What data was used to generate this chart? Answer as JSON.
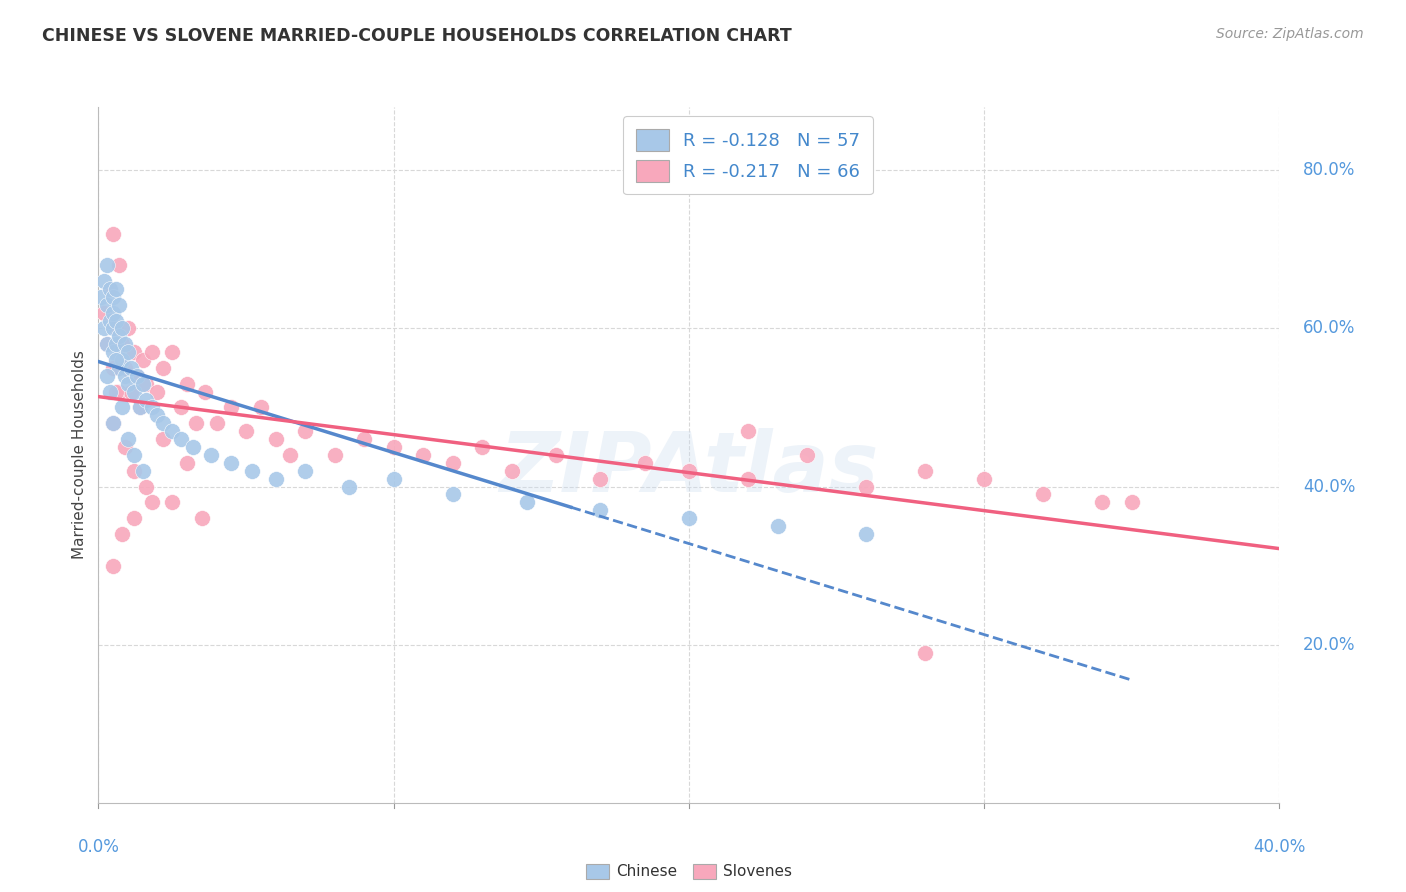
{
  "title": "CHINESE VS SLOVENE MARRIED-COUPLE HOUSEHOLDS CORRELATION CHART",
  "source": "Source: ZipAtlas.com",
  "ylabel": "Married-couple Households",
  "xlim": [
    0.0,
    0.4
  ],
  "ylim": [
    0.0,
    0.88
  ],
  "ytick_labels": [
    "20.0%",
    "40.0%",
    "60.0%",
    "80.0%"
  ],
  "ytick_values": [
    0.2,
    0.4,
    0.6,
    0.8
  ],
  "xtick_values": [
    0.0,
    0.1,
    0.2,
    0.3,
    0.4
  ],
  "chinese_color": "#a8c8e8",
  "slovene_color": "#f8a8bc",
  "trendline_chinese_color": "#5588cc",
  "trendline_slovene_color": "#f06080",
  "watermark": "ZIPAtlas",
  "background_color": "#ffffff",
  "grid_color": "#d8d8d8",
  "chinese_x": [
    0.001,
    0.002,
    0.002,
    0.003,
    0.003,
    0.003,
    0.004,
    0.004,
    0.005,
    0.005,
    0.005,
    0.005,
    0.006,
    0.006,
    0.006,
    0.007,
    0.007,
    0.007,
    0.008,
    0.008,
    0.009,
    0.009,
    0.01,
    0.01,
    0.011,
    0.012,
    0.013,
    0.014,
    0.015,
    0.016,
    0.018,
    0.02,
    0.022,
    0.025,
    0.028,
    0.032,
    0.038,
    0.045,
    0.052,
    0.06,
    0.07,
    0.085,
    0.1,
    0.12,
    0.145,
    0.17,
    0.2,
    0.23,
    0.26,
    0.005,
    0.003,
    0.004,
    0.006,
    0.008,
    0.01,
    0.012,
    0.015
  ],
  "chinese_y": [
    0.64,
    0.66,
    0.6,
    0.68,
    0.63,
    0.58,
    0.65,
    0.61,
    0.64,
    0.6,
    0.57,
    0.62,
    0.65,
    0.61,
    0.58,
    0.63,
    0.59,
    0.55,
    0.6,
    0.56,
    0.58,
    0.54,
    0.57,
    0.53,
    0.55,
    0.52,
    0.54,
    0.5,
    0.53,
    0.51,
    0.5,
    0.49,
    0.48,
    0.47,
    0.46,
    0.45,
    0.44,
    0.43,
    0.42,
    0.41,
    0.42,
    0.4,
    0.41,
    0.39,
    0.38,
    0.37,
    0.36,
    0.35,
    0.34,
    0.48,
    0.54,
    0.52,
    0.56,
    0.5,
    0.46,
    0.44,
    0.42
  ],
  "slovene_x": [
    0.002,
    0.003,
    0.004,
    0.005,
    0.005,
    0.006,
    0.007,
    0.007,
    0.008,
    0.009,
    0.01,
    0.011,
    0.012,
    0.013,
    0.014,
    0.015,
    0.016,
    0.018,
    0.02,
    0.022,
    0.025,
    0.028,
    0.03,
    0.033,
    0.036,
    0.04,
    0.045,
    0.05,
    0.055,
    0.06,
    0.065,
    0.07,
    0.08,
    0.09,
    0.1,
    0.11,
    0.12,
    0.13,
    0.14,
    0.155,
    0.17,
    0.185,
    0.2,
    0.22,
    0.24,
    0.26,
    0.28,
    0.3,
    0.32,
    0.34,
    0.005,
    0.008,
    0.012,
    0.018,
    0.025,
    0.035,
    0.005,
    0.006,
    0.009,
    0.012,
    0.016,
    0.022,
    0.03,
    0.22,
    0.35,
    0.28
  ],
  "slovene_y": [
    0.62,
    0.58,
    0.65,
    0.72,
    0.55,
    0.6,
    0.68,
    0.52,
    0.58,
    0.55,
    0.6,
    0.52,
    0.57,
    0.54,
    0.5,
    0.56,
    0.53,
    0.57,
    0.52,
    0.55,
    0.57,
    0.5,
    0.53,
    0.48,
    0.52,
    0.48,
    0.5,
    0.47,
    0.5,
    0.46,
    0.44,
    0.47,
    0.44,
    0.46,
    0.45,
    0.44,
    0.43,
    0.45,
    0.42,
    0.44,
    0.41,
    0.43,
    0.42,
    0.41,
    0.44,
    0.4,
    0.42,
    0.41,
    0.39,
    0.38,
    0.3,
    0.34,
    0.36,
    0.38,
    0.38,
    0.36,
    0.48,
    0.52,
    0.45,
    0.42,
    0.4,
    0.46,
    0.43,
    0.47,
    0.38,
    0.19
  ]
}
